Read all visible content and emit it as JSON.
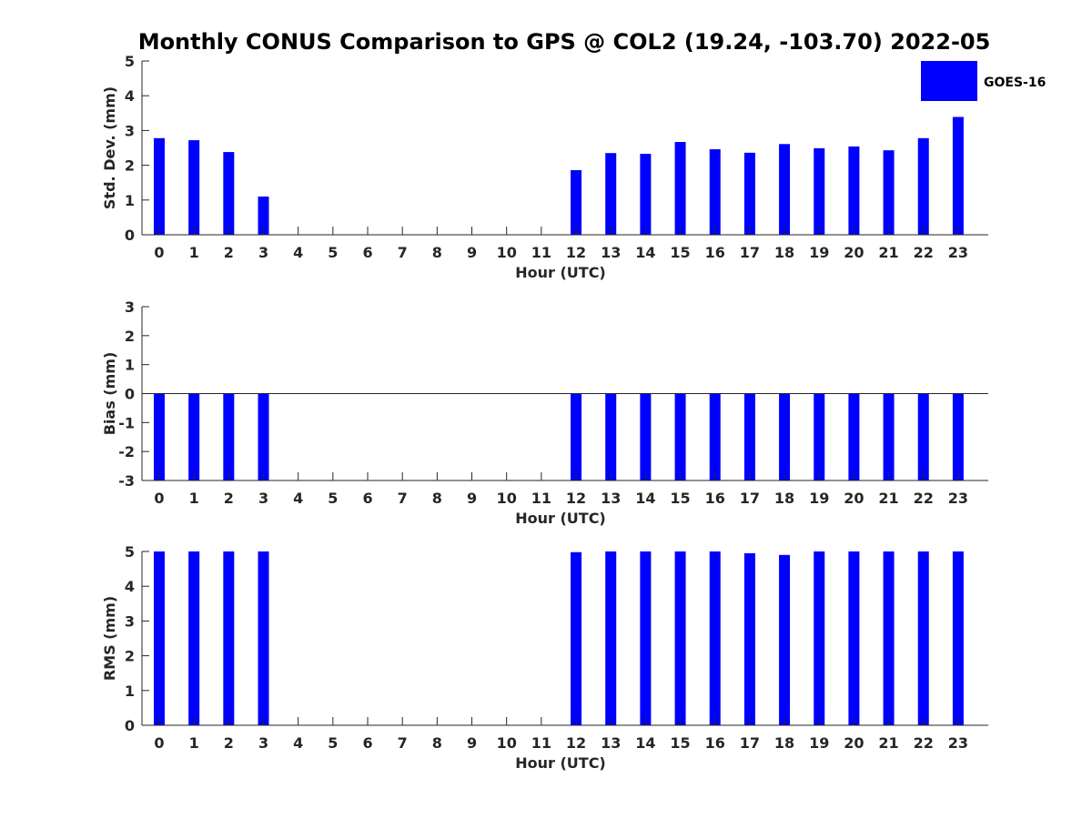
{
  "title": "Monthly CONUS Comparison to GPS @ COL2 (19.24, -103.70) 2022-05",
  "legend": {
    "label": "GOES-16",
    "color": "#0000ff"
  },
  "chart_data": [
    {
      "type": "bar",
      "title": "",
      "xlabel": "Hour (UTC)",
      "ylabel": "Std. Dev. (mm)",
      "ylim": [
        0,
        5
      ],
      "yticks": [
        0,
        1,
        2,
        3,
        4,
        5
      ],
      "categories": [
        "0",
        "1",
        "2",
        "3",
        "4",
        "5",
        "6",
        "7",
        "8",
        "9",
        "10",
        "11",
        "12",
        "13",
        "14",
        "15",
        "16",
        "17",
        "18",
        "19",
        "20",
        "21",
        "22",
        "23"
      ],
      "series": [
        {
          "name": "GOES-16",
          "color": "#0000ff",
          "values": [
            2.78,
            2.72,
            2.38,
            1.1,
            null,
            null,
            null,
            null,
            null,
            null,
            null,
            null,
            1.86,
            2.35,
            2.33,
            2.67,
            2.46,
            2.36,
            2.61,
            2.49,
            2.54,
            2.43,
            2.78,
            3.39
          ]
        }
      ]
    },
    {
      "type": "bar",
      "title": "",
      "xlabel": "Hour (UTC)",
      "ylabel": "Bias (mm)",
      "ylim": [
        -3,
        3
      ],
      "yticks": [
        -3,
        -2,
        -1,
        0,
        1,
        2,
        3
      ],
      "zero_line": true,
      "categories": [
        "0",
        "1",
        "2",
        "3",
        "4",
        "5",
        "6",
        "7",
        "8",
        "9",
        "10",
        "11",
        "12",
        "13",
        "14",
        "15",
        "16",
        "17",
        "18",
        "19",
        "20",
        "21",
        "22",
        "23"
      ],
      "series": [
        {
          "name": "GOES-16",
          "color": "#0000ff",
          "values": [
            -3,
            -3,
            -3,
            -3,
            null,
            null,
            null,
            null,
            null,
            null,
            null,
            null,
            -3,
            -3,
            -3,
            -3,
            -3,
            -3,
            -3,
            -3,
            -3,
            -3,
            -3,
            -3
          ]
        }
      ]
    },
    {
      "type": "bar",
      "title": "",
      "xlabel": "Hour (UTC)",
      "ylabel": "RMS (mm)",
      "ylim": [
        0,
        5
      ],
      "yticks": [
        0,
        1,
        2,
        3,
        4,
        5
      ],
      "categories": [
        "0",
        "1",
        "2",
        "3",
        "4",
        "5",
        "6",
        "7",
        "8",
        "9",
        "10",
        "11",
        "12",
        "13",
        "14",
        "15",
        "16",
        "17",
        "18",
        "19",
        "20",
        "21",
        "22",
        "23"
      ],
      "series": [
        {
          "name": "GOES-16",
          "color": "#0000ff",
          "values": [
            5,
            5,
            5,
            5,
            null,
            null,
            null,
            null,
            null,
            null,
            null,
            null,
            4.98,
            5,
            5,
            5,
            5,
            4.95,
            4.9,
            5,
            5,
            5,
            5,
            5
          ]
        }
      ]
    }
  ]
}
